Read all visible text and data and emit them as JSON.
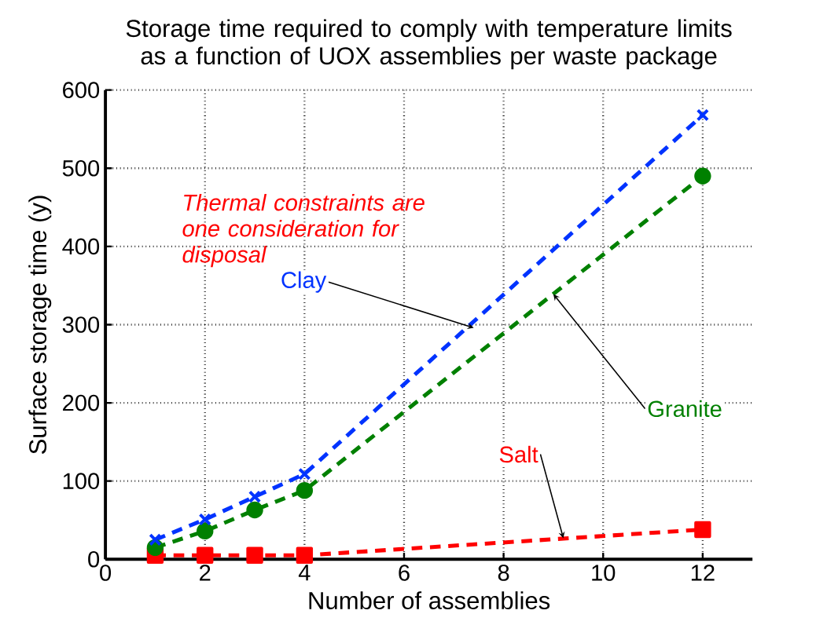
{
  "chart_data": {
    "type": "line",
    "title": "Storage time required to comply with temperature limits as a function of UOX assemblies per waste package",
    "xlabel": "Number of assemblies",
    "ylabel": "Surface storage time (y)",
    "x": [
      1,
      2,
      3,
      4,
      12
    ],
    "series": [
      {
        "name": "Clay",
        "color": "#0033ff",
        "marker": "cross",
        "values": [
          25,
          51,
          80,
          109,
          568
        ]
      },
      {
        "name": "Granite",
        "color": "#008000",
        "marker": "circle",
        "values": [
          15,
          36,
          63,
          88,
          490
        ]
      },
      {
        "name": "Salt",
        "color": "#ff0000",
        "marker": "square",
        "values": [
          5,
          5,
          5,
          5,
          38
        ]
      }
    ],
    "xlim": [
      0,
      13
    ],
    "xticks": [
      0,
      2,
      4,
      6,
      8,
      10,
      12
    ],
    "ylim": [
      0,
      600
    ],
    "yticks": [
      0,
      100,
      200,
      300,
      400,
      500,
      600
    ],
    "grid": true,
    "legend": false,
    "line_style": "dashed",
    "annotations": [
      "Thermal constraints are one consideration for disposal"
    ]
  }
}
